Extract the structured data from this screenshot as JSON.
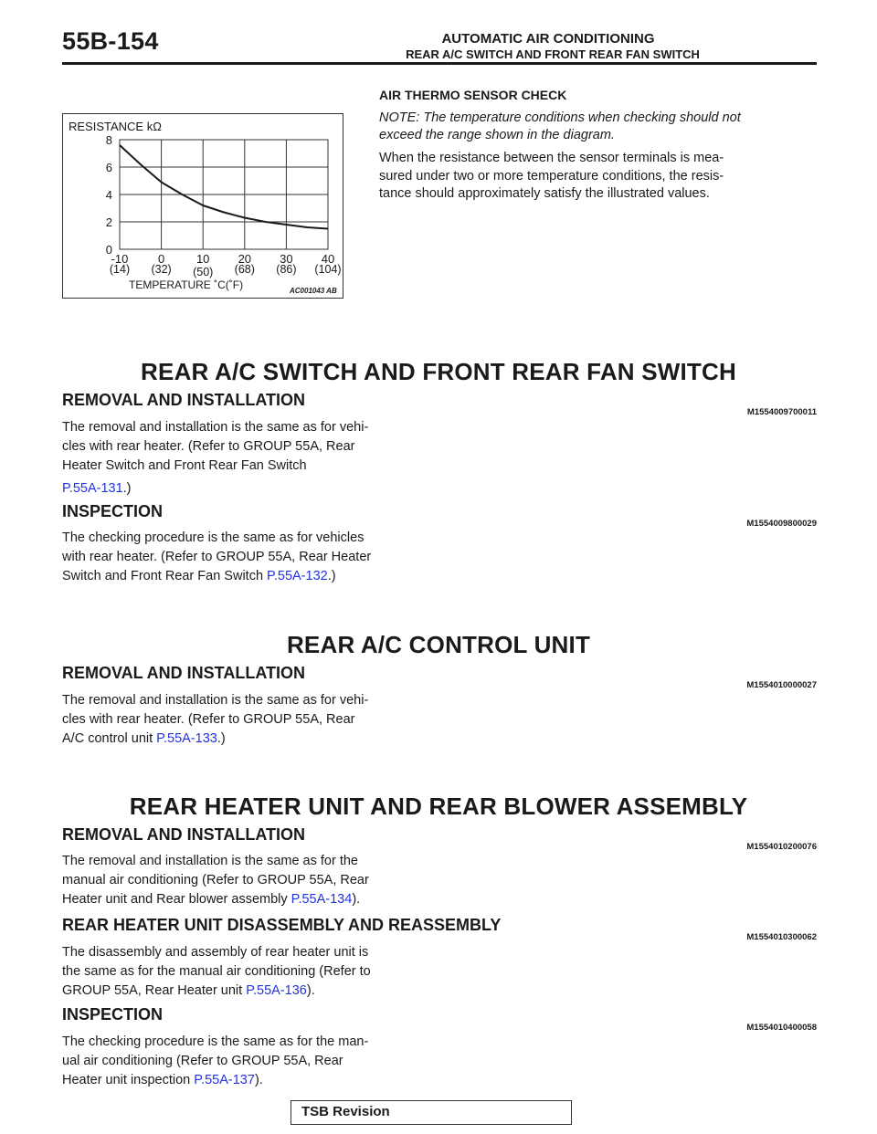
{
  "header": {
    "page_number": "55B-154",
    "title": "AUTOMATIC AIR CONDITIONING",
    "subtitle": "REAR A/C SWITCH AND FRONT REAR FAN SWITCH"
  },
  "figure": {
    "ylabel": "RESISTANCE kΩ",
    "xlabel": "TEMPERATURE ˚C(˚F)",
    "code": "AC001043 AB",
    "chart_data": {
      "type": "line",
      "title": "",
      "ylabel": "RESISTANCE kΩ",
      "xlabel": "TEMPERATURE ˚C(˚F)",
      "xlim": [
        -10,
        40
      ],
      "ylim": [
        0,
        8
      ],
      "grid": true,
      "x_ticks": [
        {
          "c": "-10",
          "f": "(14)"
        },
        {
          "c": "0",
          "f": "(32)"
        },
        {
          "c": "10",
          "f": "(50)"
        },
        {
          "c": "20",
          "f": "(68)"
        },
        {
          "c": "30",
          "f": "(86)"
        },
        {
          "c": "40",
          "f": "(104)"
        }
      ],
      "y_ticks": [
        "0",
        "2",
        "4",
        "6",
        "8"
      ],
      "series": [
        {
          "x": [
            -10,
            -5,
            0,
            5,
            10,
            15,
            20,
            25,
            30,
            35,
            40
          ],
          "y": [
            7.6,
            6.2,
            4.9,
            4.0,
            3.2,
            2.7,
            2.3,
            2.0,
            1.8,
            1.6,
            1.5
          ]
        }
      ]
    }
  },
  "sensor_check": {
    "title": "AIR THERMO SENSOR CHECK",
    "note": "NOTE: The temperature conditions when checking should not exceed the range shown in the diagram.",
    "body": "When the resistance between the sensor terminals is measured under two or more temperature conditions, the resistance should approximately satisfy the illustrated values.",
    "body_lines": [
      "When the resistance between the sensor terminals is mea-",
      "sured under two or more temperature conditions, the resis-",
      "tance should approximately satisfy the illustrated values."
    ],
    "note_lines": [
      "NOTE: The temperature conditions when checking should not",
      "exceed the range shown in the diagram."
    ]
  },
  "sections": {
    "s1": {
      "title": "REAR A/C SWITCH AND FRONT REAR FAN SWITCH",
      "removal": {
        "heading": "REMOVAL AND INSTALLATION",
        "code": "M1554009700011",
        "lines": [
          "The removal and installation is the same as for vehi-",
          "cles with rear heater. (Refer to GROUP 55A, Rear",
          "Heater Switch and Front Rear Fan Switch"
        ],
        "link": "P.55A-131",
        "tail": ".)"
      },
      "inspection": {
        "heading": "INSPECTION",
        "code": "M1554009800029",
        "lines": [
          "The checking procedure is the same as for vehicles",
          "with rear heater. (Refer to GROUP 55A, Rear Heater"
        ],
        "last_prefix": "Switch and Front Rear Fan Switch ",
        "link": "P.55A-132",
        "tail": ".)"
      }
    },
    "s2": {
      "title": "REAR A/C CONTROL UNIT",
      "removal": {
        "heading": "REMOVAL AND INSTALLATION",
        "code": "M1554010000027",
        "lines": [
          "The removal and installation is the same as for vehi-",
          "cles with rear heater. (Refer to GROUP 55A, Rear"
        ],
        "last_prefix": "A/C control unit ",
        "link": "P.55A-133",
        "tail": ".)"
      }
    },
    "s3": {
      "title": "REAR HEATER UNIT AND REAR BLOWER ASSEMBLY",
      "removal": {
        "heading": "REMOVAL AND INSTALLATION",
        "code": "M1554010200076",
        "lines": [
          "The removal and installation is the same as for the",
          "manual air conditioning (Refer to GROUP 55A, Rear"
        ],
        "last_prefix": "Heater unit and Rear blower assembly ",
        "link": "P.55A-134",
        "tail": ")."
      },
      "disassembly": {
        "heading": "REAR HEATER UNIT DISASSEMBLY AND REASSEMBLY",
        "code": "M1554010300062",
        "lines": [
          "The disassembly and assembly of rear heater unit is",
          "the same as for the manual air conditioning (Refer to"
        ],
        "last_prefix": "GROUP 55A, Rear Heater unit ",
        "link": "P.55A-136",
        "tail": ")."
      },
      "inspection": {
        "heading": "INSPECTION",
        "code": "M1554010400058",
        "lines": [
          "The checking procedure is the same as for the man-",
          "ual air conditioning (Refer to GROUP 55A, Rear"
        ],
        "last_prefix": "Heater unit inspection ",
        "link": "P.55A-137",
        "tail": ")."
      }
    }
  },
  "footer": {
    "label": "TSB Revision"
  }
}
